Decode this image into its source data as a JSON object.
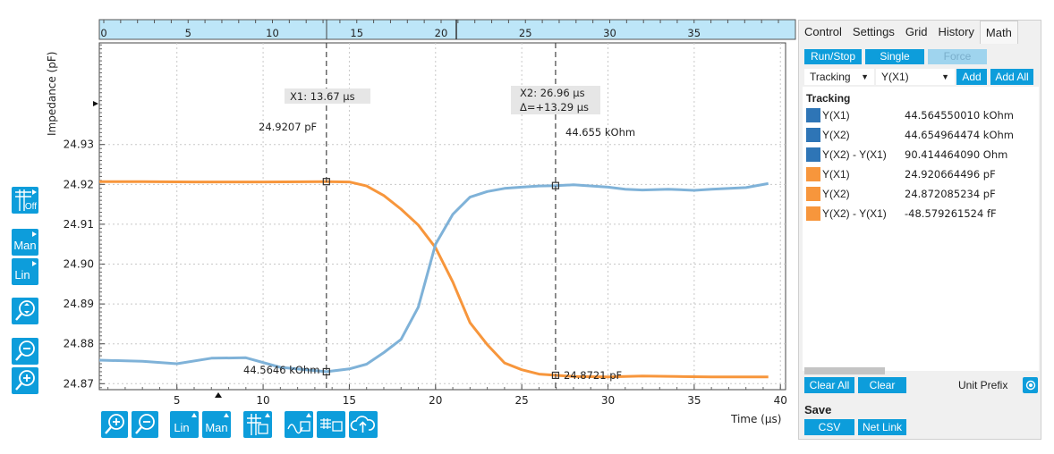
{
  "chart_data": {
    "type": "line",
    "ylabel": "Impedance (pF)",
    "xlabel": "Time (µs)",
    "xlim": [
      0.5,
      40.3
    ],
    "ylim": [
      24.8685,
      24.9555
    ],
    "x_ticks": [
      5,
      10,
      15,
      20,
      25,
      30,
      35,
      40
    ],
    "y_ticks": [
      24.87,
      24.88,
      24.89,
      24.9,
      24.91,
      24.92,
      24.93
    ],
    "y_tick_labels": [
      "24.87",
      "24.88",
      "24.89",
      "24.90",
      "24.91",
      "24.92",
      "24.93"
    ],
    "x_tick_labels": [
      "5",
      "10",
      "15",
      "20",
      "25",
      "30",
      "35",
      "40"
    ],
    "overview_ticks": [
      "0",
      "5",
      "10",
      "15",
      "20",
      "25",
      "30",
      "35"
    ],
    "grid": true,
    "series": [
      {
        "color": "#f7963c",
        "x": [
          0.5,
          3,
          6,
          8,
          10,
          13.67,
          15,
          16,
          17,
          18,
          19,
          20,
          21,
          22,
          23,
          24,
          25,
          26,
          26.96,
          28,
          30,
          32,
          34,
          36,
          38,
          39.3
        ],
        "y": [
          24.9207,
          24.9207,
          24.9206,
          24.9206,
          24.9206,
          24.9207,
          24.9206,
          24.9196,
          24.9172,
          24.9138,
          24.9098,
          24.9041,
          24.8955,
          24.8853,
          24.8798,
          24.8752,
          24.8735,
          24.8724,
          24.8721,
          24.8718,
          24.8717,
          24.8719,
          24.8718,
          24.8717,
          24.8717,
          24.8717
        ]
      },
      {
        "color": "#7fb2d8",
        "x": [
          0.5,
          3,
          5,
          7,
          9,
          11,
          13.67,
          15,
          16,
          17,
          18,
          19,
          20,
          21,
          22,
          23,
          24,
          25,
          26,
          26.96,
          28,
          30,
          31,
          32,
          33.5,
          35,
          36,
          38,
          39.3
        ],
        "y": [
          24.8759,
          24.8756,
          24.875,
          24.8764,
          24.8765,
          24.8741,
          24.873,
          24.8737,
          24.8749,
          24.8778,
          24.8811,
          24.8892,
          24.905,
          24.9125,
          24.9168,
          24.9182,
          24.919,
          24.9193,
          24.9196,
          24.9197,
          24.9199,
          24.9193,
          24.9188,
          24.9186,
          24.9188,
          24.9185,
          24.9188,
          24.9192,
          24.9202
        ]
      }
    ],
    "cursors": [
      {
        "label": "X1: 13.67 µs",
        "x": 13.67
      },
      {
        "label": "X2: 26.96 µs",
        "delta": "Δ=+13.29 µs",
        "x": 26.96
      }
    ],
    "markers": [
      {
        "x": 13.67,
        "y": 24.9207,
        "label": "24.9207 pF"
      },
      {
        "x": 13.67,
        "y": 24.873,
        "label": "44.5646 kOhm"
      },
      {
        "x": 26.96,
        "y": 24.9197,
        "label": "44.655 kOhm"
      },
      {
        "x": 26.96,
        "y": 24.8721,
        "label": "24.8721 pF"
      }
    ]
  },
  "tabs": [
    "Control",
    "Settings",
    "Grid",
    "History",
    "Math"
  ],
  "math": {
    "run_stop": "Run/Stop",
    "single": "Single",
    "force": "Force",
    "mode_select": "Tracking",
    "signal_select": "Y(X1)",
    "add": "Add",
    "add_all": "Add All",
    "list_title": "Tracking",
    "rows": [
      {
        "name": "Y(X1)",
        "value": "44.564550010 kOhm",
        "color": "#2e75b6"
      },
      {
        "name": "Y(X2)",
        "value": "44.654964474 kOhm",
        "color": "#2e75b6"
      },
      {
        "name": "Y(X2) - Y(X1)",
        "value": "90.414464090 Ohm",
        "color": "#2e75b6"
      },
      {
        "name": "Y(X1)",
        "value": "24.920664496 pF",
        "color": "#f7963c"
      },
      {
        "name": "Y(X2)",
        "value": "24.872085234 pF",
        "color": "#f7963c"
      },
      {
        "name": "Y(X2) - Y(X1)",
        "value": "-48.579261524 fF",
        "color": "#f7963c"
      }
    ],
    "clear_all": "Clear All",
    "clear": "Clear",
    "unit_prefix": "Unit Prefix",
    "save_title": "Save",
    "csv": "CSV",
    "net_link": "Net Link"
  },
  "toolbar": {
    "off_label": "Off",
    "man_label": "Man",
    "lin_label": "Lin"
  }
}
